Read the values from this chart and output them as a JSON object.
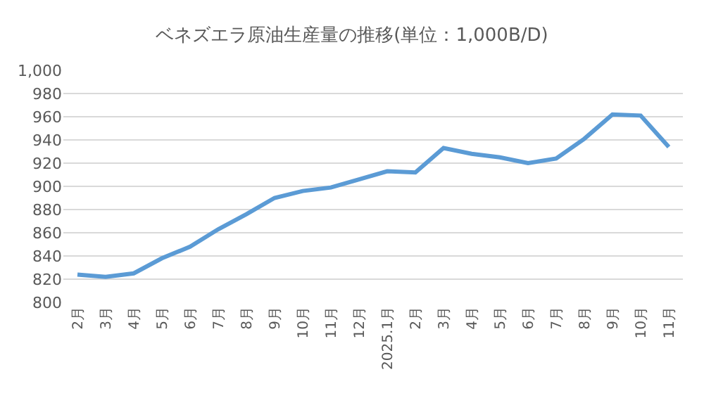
{
  "chart_data": {
    "type": "line",
    "title": "ベネズエラ原油生産量の推移(単位：1,000B/D)",
    "categories": [
      "2月",
      "3月",
      "4月",
      "5月",
      "6月",
      "7月",
      "8月",
      "9月",
      "10月",
      "11月",
      "12月",
      "2025.1月",
      "2月",
      "3月",
      "4月",
      "5月",
      "6月",
      "7月",
      "8月",
      "9月",
      "10月",
      "11月"
    ],
    "series": [
      {
        "color": "#5b9bd5",
        "values": [
          824,
          822,
          825,
          838,
          848,
          863,
          876,
          890,
          896,
          899,
          906,
          913,
          912,
          933,
          928,
          925,
          920,
          924,
          941,
          962,
          961,
          934
        ]
      }
    ],
    "ylim": [
      800,
      1000
    ],
    "yticks": [
      800,
      820,
      840,
      860,
      880,
      900,
      920,
      940,
      960,
      980,
      {
        "value": 1000,
        "label": "1,000"
      }
    ],
    "grid": "y",
    "legend": false,
    "marker": "none",
    "line_style": "solid"
  }
}
